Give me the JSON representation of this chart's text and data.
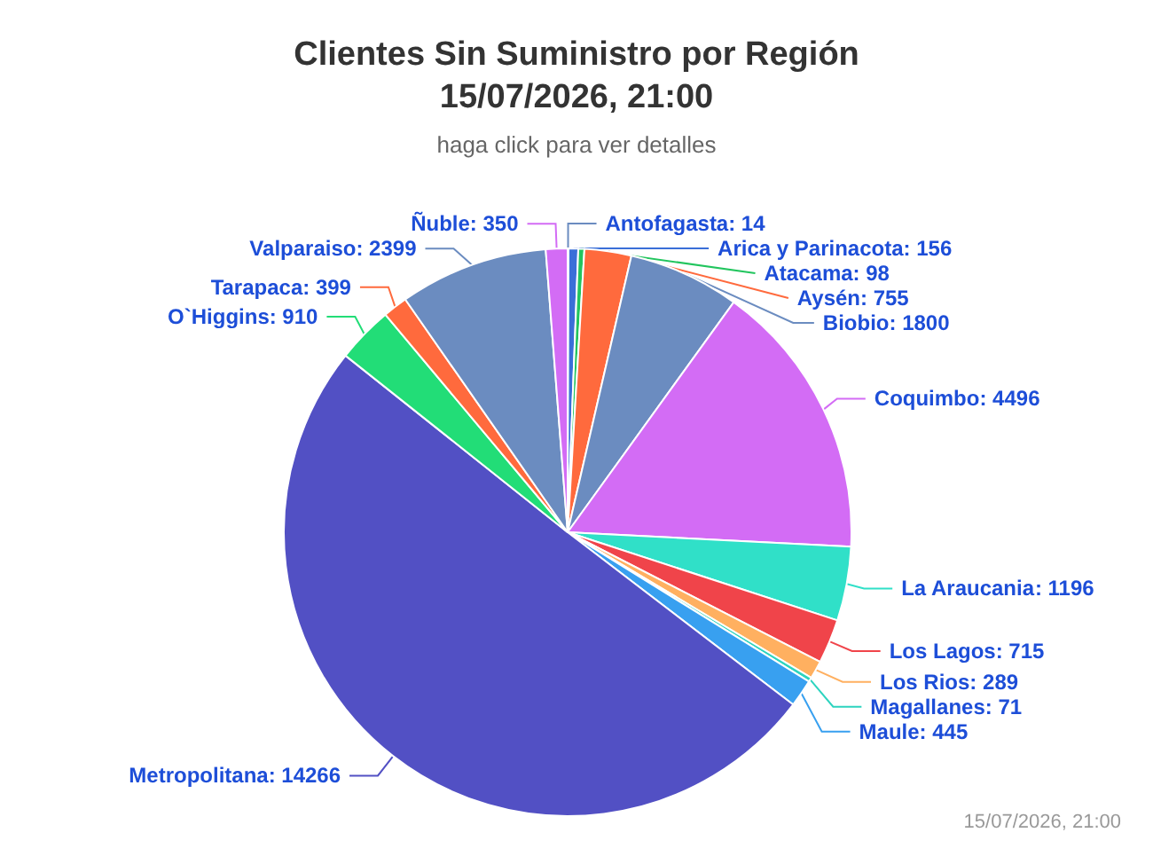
{
  "chart_data": {
    "type": "pie",
    "title": "Clientes Sin Suministro por Región\n15/07/2026, 21:00",
    "subtitle": "haga click para ver detalles",
    "categories": [
      "Antofagasta",
      "Arica y Parinacota",
      "Atacama",
      "Aysén",
      "Biobio",
      "Coquimbo",
      "La Araucania",
      "Los Lagos",
      "Los Rios",
      "Magallanes",
      "Maule",
      "Metropolitana",
      "O`Higgins",
      "Tarapaca",
      "Valparaiso",
      "Ñuble"
    ],
    "values": [
      14,
      156,
      98,
      755,
      1800,
      4496,
      1196,
      715,
      289,
      71,
      445,
      14266,
      910,
      399,
      2399,
      350
    ],
    "colors": [
      "#6b8cc0",
      "#3a6fd8",
      "#22c55e",
      "#ff6a3d",
      "#6b8cc0",
      "#d36cf5",
      "#30e0c8",
      "#f0444a",
      "#ffb060",
      "#2dd4bf",
      "#38a0f0",
      "#5250c4",
      "#22dd77",
      "#ff6a3d",
      "#6b8cc0",
      "#d36cf5"
    ],
    "value_labels": [
      ": 14",
      ": 156",
      ": 98",
      ": 755",
      ": 1800",
      ": 4496",
      ": 1196",
      ": 715",
      ": 289",
      ": 71",
      ": 445",
      ": 14266",
      ": 910",
      ": 399",
      ": 2399",
      ": 350"
    ],
    "annotations": [
      "15/07/2026, 21:00"
    ]
  }
}
